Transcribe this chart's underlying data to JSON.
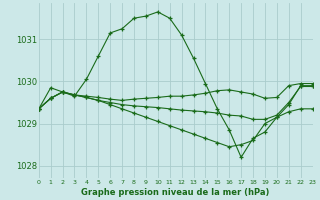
{
  "title": "Graphe pression niveau de la mer (hPa)",
  "background_color": "#cce8e8",
  "grid_color": "#aacccc",
  "line_color": "#1a6b1a",
  "xlim": [
    0,
    23
  ],
  "ylim": [
    1027.7,
    1031.85
  ],
  "yticks": [
    1028,
    1029,
    1030,
    1031
  ],
  "xtick_labels": [
    "0",
    "1",
    "2",
    "3",
    "4",
    "5",
    "6",
    "7",
    "8",
    "9",
    "10",
    "11",
    "12",
    "13",
    "14",
    "15",
    "16",
    "17",
    "18",
    "19",
    "20",
    "21",
    "22",
    "23"
  ],
  "series": [
    [
      1029.35,
      1029.85,
      1029.75,
      1029.65,
      1030.05,
      1030.6,
      1031.15,
      1031.25,
      1031.5,
      1031.55,
      1031.65,
      1031.5,
      1031.1,
      1030.55,
      1029.95,
      1029.35,
      1028.85,
      1028.2,
      1028.65,
      1028.8,
      1029.15,
      1029.45,
      1029.9,
      1029.9
    ],
    [
      1029.35,
      1029.6,
      1029.75,
      1029.68,
      1029.65,
      1029.62,
      1029.58,
      1029.55,
      1029.58,
      1029.6,
      1029.62,
      1029.65,
      1029.65,
      1029.68,
      1029.72,
      1029.78,
      1029.8,
      1029.75,
      1029.7,
      1029.6,
      1029.62,
      1029.9,
      1029.95,
      1029.95
    ],
    [
      1029.35,
      1029.6,
      1029.75,
      1029.68,
      1029.62,
      1029.55,
      1029.5,
      1029.45,
      1029.42,
      1029.4,
      1029.38,
      1029.35,
      1029.32,
      1029.3,
      1029.28,
      1029.25,
      1029.2,
      1029.18,
      1029.1,
      1029.1,
      1029.2,
      1029.5,
      1029.88,
      1029.88
    ],
    [
      1029.35,
      1029.6,
      1029.75,
      1029.68,
      1029.62,
      1029.55,
      1029.45,
      1029.35,
      1029.25,
      1029.15,
      1029.05,
      1028.95,
      1028.85,
      1028.75,
      1028.65,
      1028.55,
      1028.45,
      1028.5,
      1028.6,
      1029.0,
      1029.15,
      1029.28,
      1029.35,
      1029.35
    ]
  ]
}
